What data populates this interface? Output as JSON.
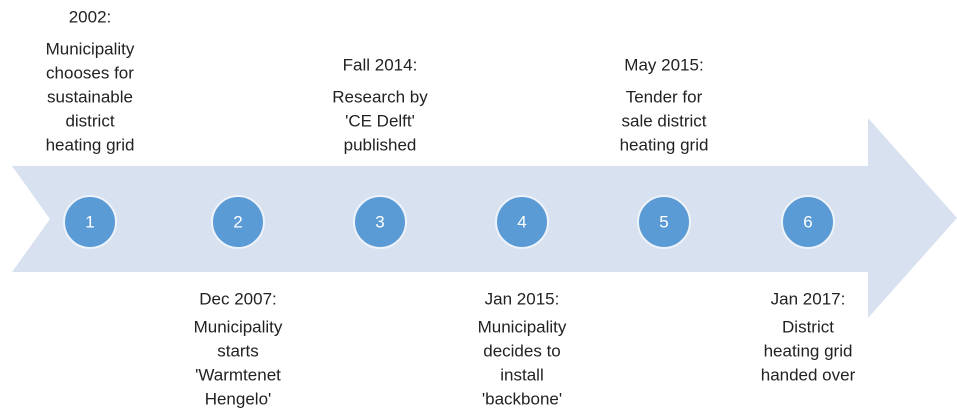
{
  "events": [
    {
      "number": "1",
      "date": "2002:",
      "description": [
        "Municipality",
        "chooses for",
        "sustainable",
        "district",
        "heating grid"
      ]
    },
    {
      "number": "2",
      "date": "Dec 2007:",
      "description": [
        "Municipality",
        "starts",
        "'Warmtenet",
        "Hengelo'"
      ]
    },
    {
      "number": "3",
      "date": "Fall 2014:",
      "description": [
        "Research by",
        "'CE Delft'",
        "published"
      ]
    },
    {
      "number": "4",
      "date": "Jan 2015:",
      "description": [
        "Municipality",
        "decides to",
        "install",
        "'backbone'"
      ]
    },
    {
      "number": "5",
      "date": "May 2015:",
      "description": [
        "Tender for",
        "sale district",
        "heating grid"
      ]
    },
    {
      "number": "6",
      "date": "Jan 2017:",
      "description": [
        "District",
        "heating grid",
        "handed over"
      ]
    }
  ]
}
